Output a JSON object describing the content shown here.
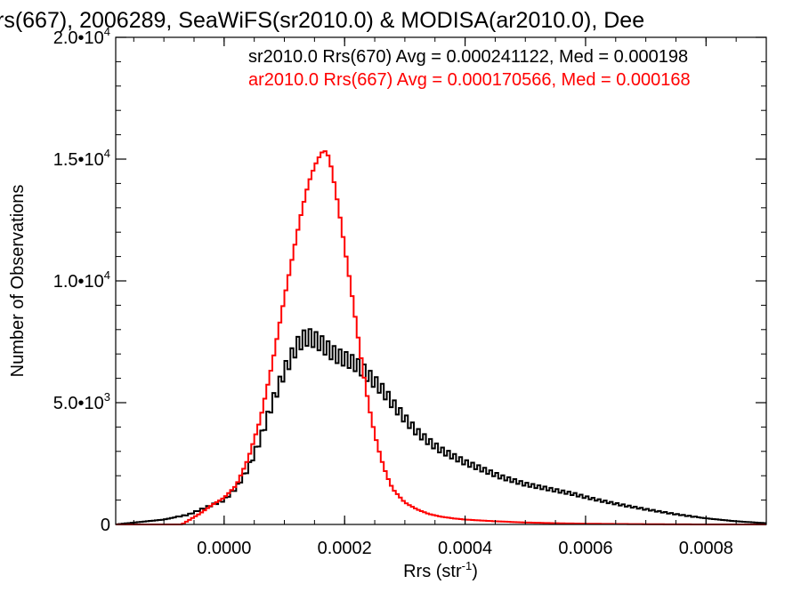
{
  "chart_data": {
    "type": "line",
    "title": "rs(667), 2006289, SeaWiFS(sr2010.0) & MODISA(ar2010.0), Dee",
    "xlabel": "Rrs (str",
    "xlabel_sup": "-1",
    "xlabel_tail": ")",
    "ylabel": "Number of Observations",
    "xlim": [
      -0.00018,
      0.0009
    ],
    "ylim": [
      0,
      20000
    ],
    "x_ticks": [
      {
        "value": 0.0,
        "label": "0.0000"
      },
      {
        "value": 0.0002,
        "label": "0.0002"
      },
      {
        "value": 0.0004,
        "label": "0.0004"
      },
      {
        "value": 0.0006,
        "label": "0.0006"
      },
      {
        "value": 0.0008,
        "label": "0.0008"
      }
    ],
    "y_ticks": [
      {
        "value": 0,
        "label": "0",
        "sup": ""
      },
      {
        "value": 5000,
        "label": "5.0•10",
        "sup": "3"
      },
      {
        "value": 10000,
        "label": "1.0•10",
        "sup": "4"
      },
      {
        "value": 15000,
        "label": "1.5•10",
        "sup": "4"
      },
      {
        "value": 20000,
        "label": "2.0•10",
        "sup": "4"
      }
    ],
    "legend_placement": "top-right",
    "series": [
      {
        "name": "sr2010.0 Rrs(670) Avg = 0.000241122, Med = 0.000198",
        "color": "#000000",
        "bin_width": 5e-06,
        "x": [
          -0.00018,
          -0.00016,
          -0.00014,
          -0.00012,
          -0.0001,
          -8e-05,
          -6e-05,
          -4e-05,
          -2e-05,
          0.0,
          2e-05,
          4e-05,
          6e-05,
          8e-05,
          0.0001,
          0.00011,
          0.00012,
          0.00013,
          0.00014,
          0.00015,
          0.00016,
          0.00017,
          0.00018,
          0.00019,
          0.0002,
          0.00021,
          0.00022,
          0.00023,
          0.00024,
          0.00025,
          0.00026,
          0.00027,
          0.00028,
          0.0003,
          0.00032,
          0.00034,
          0.00036,
          0.00038,
          0.0004,
          0.00042,
          0.00044,
          0.00046,
          0.00048,
          0.0005,
          0.00052,
          0.00055,
          0.00058,
          0.0006,
          0.00063,
          0.00066,
          0.0007,
          0.00075,
          0.0008,
          0.00085,
          0.0009
        ],
        "y": [
          0,
          50,
          100,
          150,
          200,
          300,
          400,
          600,
          800,
          1000,
          1500,
          2300,
          3500,
          5000,
          6300,
          6800,
          7300,
          7600,
          7700,
          7600,
          7450,
          7250,
          7050,
          6900,
          6800,
          6700,
          6550,
          6350,
          6100,
          5850,
          5600,
          5300,
          4950,
          4350,
          3800,
          3400,
          3050,
          2800,
          2550,
          2350,
          2150,
          1950,
          1800,
          1650,
          1550,
          1400,
          1250,
          1120,
          950,
          800,
          620,
          420,
          250,
          130,
          50
        ]
      },
      {
        "name": "ar2010.0 Rrs(667) Avg = 0.000170566, Med = 0.000168",
        "color": "#ff0000",
        "bin_width": 5e-06,
        "x": [
          -0.00018,
          -8e-05,
          -7e-05,
          -6e-05,
          -4e-05,
          -2e-05,
          0.0,
          2e-05,
          4e-05,
          6e-05,
          8e-05,
          0.0001,
          0.00012,
          0.00013,
          0.00014,
          0.00015,
          0.00016,
          0.000165,
          0.00017,
          0.000175,
          0.00018,
          0.00019,
          0.0002,
          0.00021,
          0.00022,
          0.00023,
          0.00024,
          0.00025,
          0.00026,
          0.00027,
          0.00028,
          0.0003,
          0.00032,
          0.00034,
          0.00036,
          0.00038,
          0.0004,
          0.00045,
          0.0005,
          0.00055,
          0.0006,
          0.00065,
          0.0007,
          0.0008,
          0.0009
        ],
        "y": [
          0,
          0,
          0,
          150,
          450,
          800,
          1100,
          1600,
          2700,
          4300,
          6600,
          9300,
          11800,
          13000,
          14000,
          14700,
          15200,
          15350,
          15300,
          15000,
          14400,
          13000,
          11400,
          9800,
          8100,
          6400,
          4900,
          3700,
          2750,
          2000,
          1450,
          900,
          620,
          430,
          320,
          250,
          200,
          130,
          80,
          50,
          30,
          20,
          10,
          0,
          0
        ]
      }
    ]
  }
}
